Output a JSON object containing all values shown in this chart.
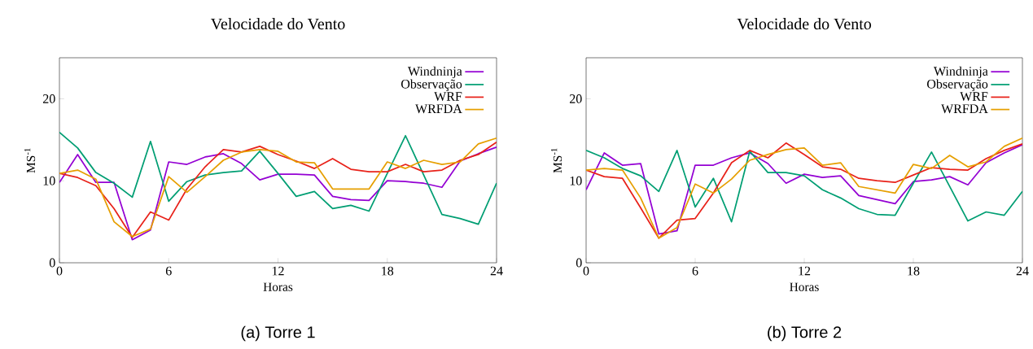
{
  "chart_data": [
    {
      "type": "line",
      "title": "Velocidade do Vento",
      "xlabel": "Horas",
      "ylabel": "MS$^{-1}$",
      "annotations": [
        "(a)  Torre 1"
      ],
      "x": [
        0,
        1,
        2,
        3,
        4,
        5,
        6,
        7,
        8,
        9,
        10,
        11,
        12,
        13,
        14,
        15,
        16,
        17,
        18,
        19,
        20,
        21,
        22,
        23,
        24
      ],
      "xlim": [
        0,
        24
      ],
      "ylim": [
        0,
        25
      ],
      "xticks": [
        0,
        6,
        12,
        18,
        24
      ],
      "yticks": [
        0,
        10,
        20
      ],
      "legend": "top right",
      "series": [
        {
          "name": "Windninja",
          "color": "#9400d3",
          "values": [
            9.8,
            13.2,
            9.8,
            9.8,
            2.8,
            4.0,
            12.3,
            12.0,
            12.9,
            13.3,
            12.1,
            10.1,
            10.8,
            10.8,
            10.7,
            8.1,
            7.7,
            7.6,
            10.0,
            9.9,
            9.7,
            9.2,
            12.4,
            13.3,
            14.1
          ]
        },
        {
          "name": "Observação",
          "color": "#009e73",
          "values": [
            15.9,
            14.0,
            11.0,
            9.7,
            8.0,
            14.8,
            7.5,
            9.9,
            10.7,
            11.0,
            11.2,
            13.6,
            10.9,
            8.1,
            8.7,
            6.6,
            7.0,
            6.3,
            10.9,
            15.5,
            10.7,
            5.9,
            5.4,
            4.7,
            9.7
          ]
        },
        {
          "name": "WRF",
          "color": "#e8221a",
          "values": [
            10.9,
            10.4,
            9.4,
            6.6,
            3.1,
            6.2,
            5.2,
            9.0,
            11.7,
            13.8,
            13.5,
            14.2,
            13.2,
            12.4,
            11.5,
            12.7,
            11.4,
            11.1,
            11.1,
            12.0,
            11.1,
            11.3,
            12.5,
            13.2,
            14.7
          ]
        },
        {
          "name": "WRFDA",
          "color": "#e69f00",
          "values": [
            10.9,
            11.3,
            10.2,
            5.0,
            3.2,
            4.1,
            10.5,
            8.6,
            10.5,
            12.5,
            13.5,
            13.8,
            13.6,
            12.3,
            12.2,
            9.0,
            9.0,
            9.0,
            12.3,
            11.5,
            12.5,
            12.0,
            12.3,
            14.5,
            15.2
          ]
        }
      ]
    },
    {
      "type": "line",
      "title": "Velocidade do Vento",
      "xlabel": "Horas",
      "ylabel": "MS$^{-1}$",
      "annotations": [
        "(b)  Torre 2"
      ],
      "x": [
        0,
        1,
        2,
        3,
        4,
        5,
        6,
        7,
        8,
        9,
        10,
        11,
        12,
        13,
        14,
        15,
        16,
        17,
        18,
        19,
        20,
        21,
        22,
        23,
        24
      ],
      "xlim": [
        0,
        24
      ],
      "ylim": [
        0,
        25
      ],
      "xticks": [
        0,
        6,
        12,
        18,
        24
      ],
      "yticks": [
        0,
        10,
        20
      ],
      "legend": "top right",
      "series": [
        {
          "name": "Windninja",
          "color": "#9400d3",
          "values": [
            8.9,
            13.4,
            11.9,
            12.1,
            3.5,
            3.9,
            11.9,
            11.9,
            12.8,
            13.4,
            12.1,
            9.7,
            10.8,
            10.4,
            10.6,
            8.2,
            7.7,
            7.2,
            9.9,
            10.1,
            10.5,
            9.5,
            12.2,
            13.4,
            14.4
          ]
        },
        {
          "name": "Observação",
          "color": "#009e73",
          "values": [
            13.7,
            12.8,
            11.5,
            10.6,
            8.7,
            13.7,
            6.8,
            10.3,
            5.0,
            13.6,
            11.0,
            11.0,
            10.6,
            8.9,
            7.9,
            6.6,
            5.9,
            5.8,
            9.7,
            13.5,
            9.3,
            5.1,
            6.2,
            5.8,
            8.7
          ]
        },
        {
          "name": "WRF",
          "color": "#e8221a",
          "values": [
            11.3,
            10.5,
            10.3,
            6.7,
            3.0,
            5.2,
            5.4,
            8.5,
            12.2,
            13.7,
            12.8,
            14.6,
            13.2,
            11.7,
            11.4,
            10.3,
            10.0,
            9.8,
            10.7,
            11.6,
            11.4,
            11.3,
            12.7,
            13.7,
            14.5
          ]
        },
        {
          "name": "WRFDA",
          "color": "#e69f00",
          "values": [
            11.3,
            11.5,
            11.3,
            7.9,
            3.0,
            4.3,
            9.6,
            8.5,
            10.2,
            12.5,
            13.2,
            13.8,
            14.0,
            11.9,
            12.2,
            9.3,
            8.9,
            8.5,
            12.0,
            11.5,
            13.1,
            11.7,
            12.3,
            14.2,
            15.2
          ]
        }
      ]
    }
  ]
}
